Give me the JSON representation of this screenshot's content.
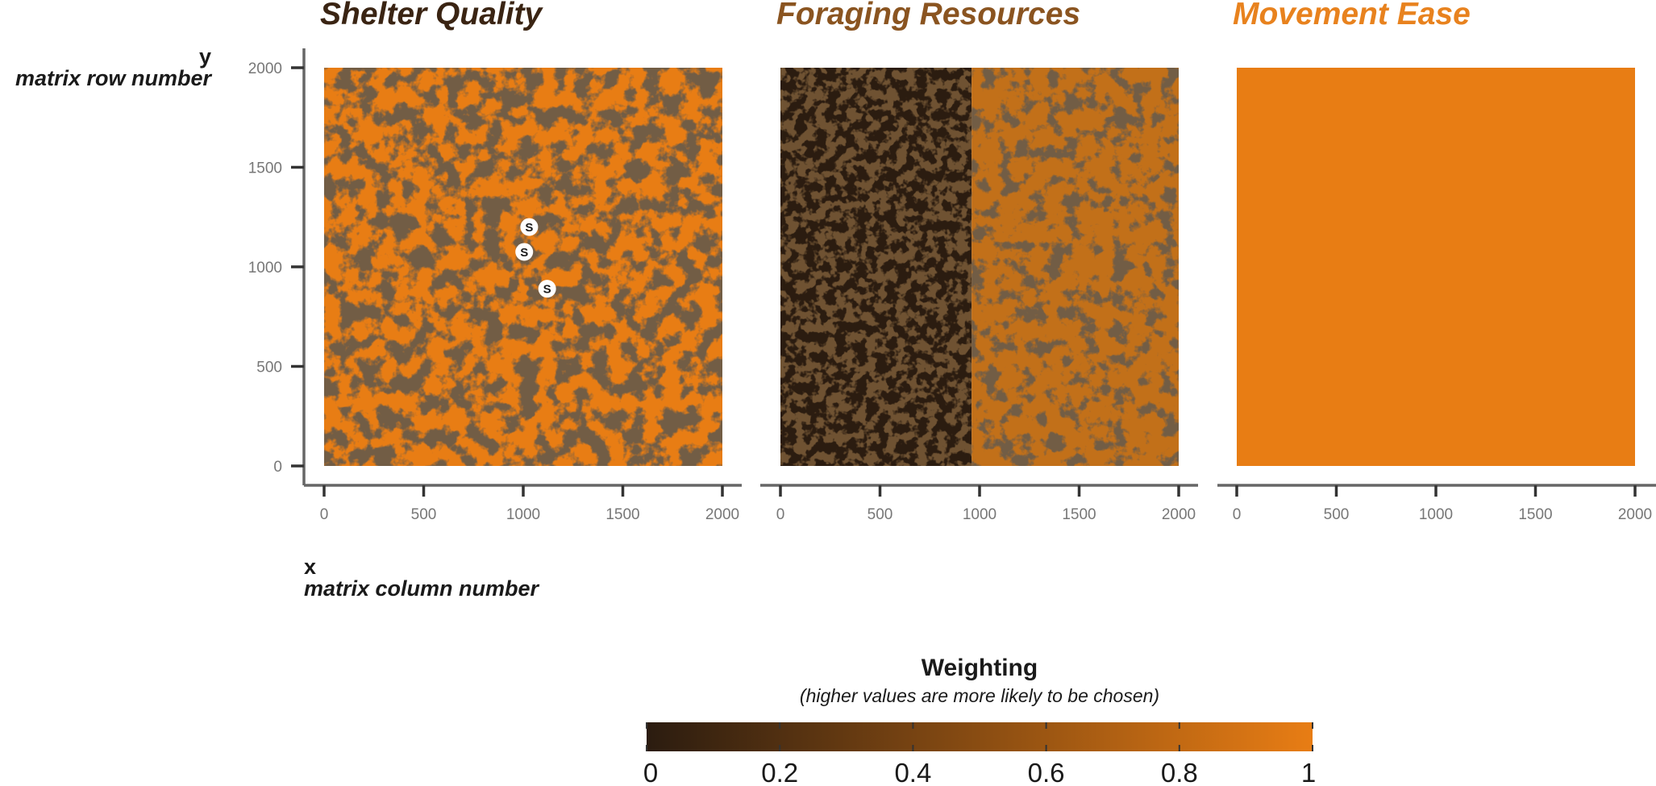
{
  "chart_data": {
    "type": "heatmap",
    "colors": {
      "low": "#2b1c10",
      "high": "#e87d14"
    },
    "panels": [
      {
        "title": "Shelter Quality",
        "title_color": "#3a2413",
        "pattern": "patchy",
        "x_ticks": [
          "0",
          "500",
          "1000",
          "1500",
          "2000"
        ],
        "y_ticks": [
          "0",
          "500",
          "1000",
          "1500",
          "2000"
        ],
        "sites": [
          {
            "label": "S",
            "x": 1030,
            "y": 1200
          },
          {
            "label": "S",
            "x": 1005,
            "y": 1075
          },
          {
            "label": "S",
            "x": 1120,
            "y": 890
          }
        ]
      },
      {
        "title": "Foraging Resources",
        "title_color": "#8a5420",
        "pattern": "split",
        "split_x": 960,
        "x_ticks": [
          "0",
          "500",
          "1000",
          "1500",
          "2000"
        ]
      },
      {
        "title": "Movement Ease",
        "title_color": "#e8821e",
        "pattern": "uniform",
        "value": 1,
        "x_ticks": [
          "0",
          "500",
          "1000",
          "1500",
          "2000"
        ]
      }
    ],
    "x_axis": {
      "var": "x",
      "label": "matrix column number",
      "range": [
        0,
        2000
      ]
    },
    "y_axis": {
      "var": "y",
      "label": "matrix row number",
      "range": [
        0,
        2000
      ]
    },
    "legend": {
      "title": "Weighting",
      "subtitle": "(higher values are more likely to be chosen)",
      "ticks": [
        "0",
        "0.2",
        "0.4",
        "0.6",
        "0.8",
        "1"
      ],
      "range": [
        0,
        1
      ]
    }
  }
}
